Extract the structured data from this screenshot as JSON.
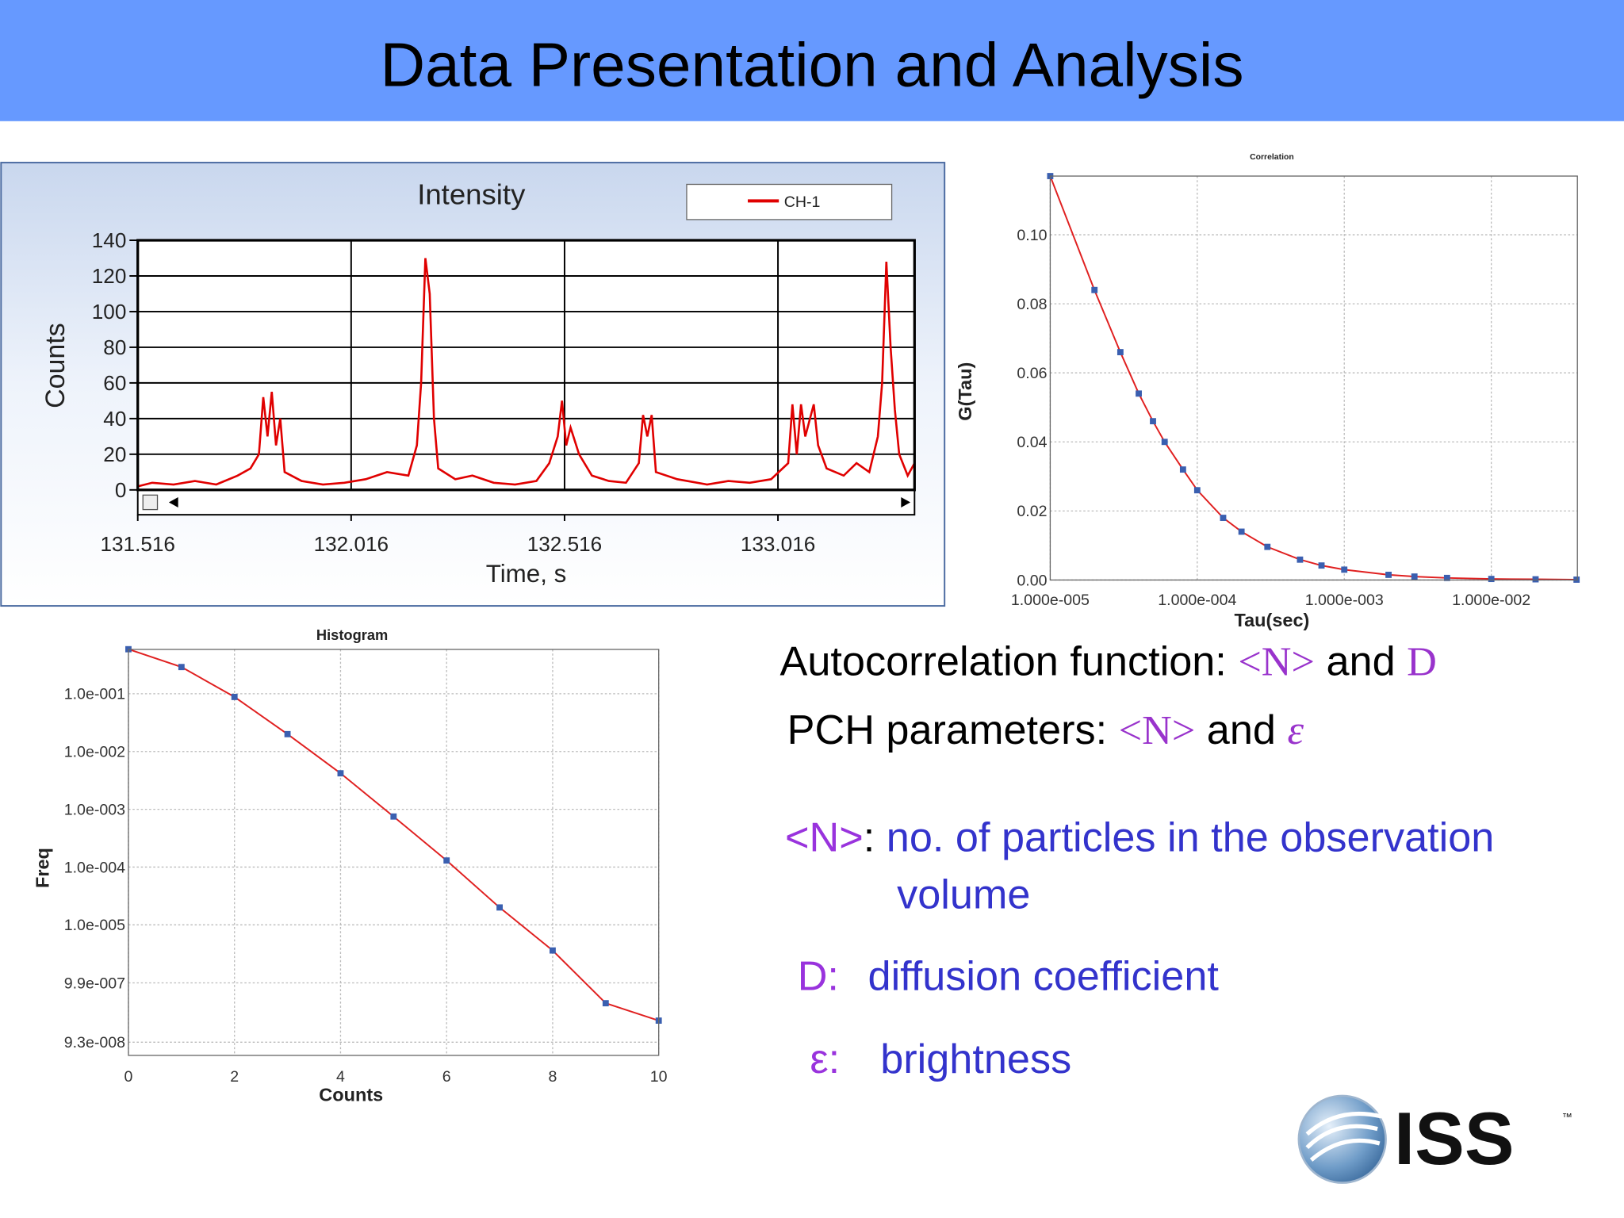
{
  "slide": {
    "title": "Data Presentation and Analysis",
    "lines": [
      [
        "Autocorrelation function: ",
        "<N>",
        " and ",
        "D"
      ],
      [
        "PCH parameters: ",
        "<N>",
        " and ",
        "ε"
      ],
      [
        "<N>",
        ": ",
        "no. of particles in the observation"
      ],
      [
        "volume"
      ],
      [
        "D:",
        "diffusion coefficient"
      ],
      [
        "ε:",
        "brightness"
      ]
    ],
    "logo": [
      "ISS",
      "™"
    ]
  },
  "chart_data": [
    {
      "type": "line",
      "title": "Intensity",
      "x_label": "Time, s",
      "y_label": "Counts",
      "x": [
        131.516,
        131.55,
        131.6,
        131.65,
        131.7,
        131.75,
        131.78,
        131.8,
        131.81,
        131.82,
        131.83,
        131.84,
        131.85,
        131.86,
        131.9,
        131.95,
        132,
        132.05,
        132.1,
        132.15,
        132.17,
        132.18,
        132.19,
        132.2,
        132.21,
        132.22,
        132.26,
        132.3,
        132.35,
        132.4,
        132.45,
        132.48,
        132.5,
        132.51,
        132.52,
        132.53,
        132.55,
        132.58,
        132.62,
        132.66,
        132.69,
        132.7,
        132.71,
        132.72,
        132.73,
        132.78,
        132.85,
        132.9,
        132.95,
        133,
        133.04,
        133.05,
        133.06,
        133.07,
        133.08,
        133.1,
        133.11,
        133.13,
        133.17,
        133.2,
        133.23,
        133.25,
        133.26,
        133.27,
        133.28,
        133.29,
        133.3,
        133.32,
        133.336
      ],
      "series": [
        {
          "name": "CH-1",
          "color": "#e00000",
          "values": [
            2,
            4,
            3,
            5,
            3,
            8,
            12,
            20,
            52,
            30,
            55,
            25,
            40,
            10,
            5,
            3,
            4,
            6,
            10,
            8,
            25,
            60,
            130,
            110,
            40,
            12,
            6,
            8,
            4,
            3,
            5,
            15,
            30,
            50,
            25,
            35,
            20,
            8,
            5,
            4,
            15,
            42,
            30,
            42,
            10,
            6,
            3,
            5,
            4,
            6,
            15,
            48,
            20,
            48,
            30,
            48,
            25,
            12,
            8,
            15,
            10,
            30,
            60,
            128,
            80,
            45,
            20,
            8,
            15
          ]
        }
      ],
      "xlim": [
        131.516,
        133.336
      ],
      "xticks": [
        131.516,
        132.016,
        132.516,
        133.016
      ],
      "ylim": [
        0,
        140
      ],
      "yticks": [
        0,
        20,
        40,
        60,
        80,
        100,
        120,
        140
      ],
      "grid": true,
      "legend": "top-right"
    },
    {
      "type": "scatter",
      "title": "Correlation",
      "x_label": "Tau(sec)",
      "y_label": "G(Tau)",
      "log_x": true,
      "x": [
        1e-05,
        2e-05,
        3e-05,
        4e-05,
        5e-05,
        6e-05,
        8e-05,
        0.0001,
        0.00015,
        0.0002,
        0.0003,
        0.0005,
        0.0007,
        0.001,
        0.002,
        0.003,
        0.005,
        0.01,
        0.02,
        0.038
      ],
      "series": [
        {
          "color": "#3a5fb0",
          "values": [
            0.117,
            0.084,
            0.066,
            0.054,
            0.046,
            0.04,
            0.032,
            0.026,
            0.018,
            0.014,
            0.0096,
            0.0059,
            0.0042,
            0.003,
            0.0015,
            0.001,
            0.0006,
            0.0003,
            0.0002,
            0.0001
          ]
        }
      ],
      "fit_color": "#e02020",
      "xlim": [
        1e-05,
        0.0385
      ],
      "xticks": [
        {
          "value": 1e-05,
          "label": "1.000e-005"
        },
        {
          "value": 0.0001,
          "label": "1.000e-004"
        },
        {
          "value": 0.001,
          "label": "1.000e-003"
        },
        {
          "value": 0.01,
          "label": "1.000e-002"
        }
      ],
      "ylim": [
        0,
        0.117
      ],
      "yticks": [
        {
          "value": 0,
          "label": "0.00"
        },
        {
          "value": 0.02,
          "label": "0.02"
        },
        {
          "value": 0.04,
          "label": "0.04"
        },
        {
          "value": 0.06,
          "label": "0.06"
        },
        {
          "value": 0.08,
          "label": "0.08"
        },
        {
          "value": 0.1,
          "label": "0.10"
        }
      ],
      "grid": true
    },
    {
      "type": "scatter",
      "title": "Histogram",
      "x_label": "Counts",
      "y_label": "Freq",
      "log_y": true,
      "x": [
        0,
        1,
        2,
        3,
        4,
        5,
        6,
        7,
        8,
        9,
        10
      ],
      "series": [
        {
          "color": "#3a5fb0",
          "values": [
            0.59,
            0.29,
            0.088,
            0.02,
            0.0042,
            0.00075,
            0.00013,
            2e-05,
            3.6e-06,
            4.4e-07,
            2.2e-07
          ]
        }
      ],
      "fit_color": "#e02020",
      "xlim": [
        0,
        10
      ],
      "xticks": [
        0,
        2,
        4,
        6,
        8,
        10
      ],
      "ylim": [
        5.5e-08,
        0.586
      ],
      "yticks": [
        {
          "value": 0.1,
          "label": "1.0e-001"
        },
        {
          "value": 0.01,
          "label": "1.0e-002"
        },
        {
          "value": 0.001,
          "label": "1.0e-003"
        },
        {
          "value": 0.0001,
          "label": "1.0e-004"
        },
        {
          "value": 1e-05,
          "label": "1.0e-005"
        },
        {
          "value": 9.9e-07,
          "label": "9.9e-007"
        },
        {
          "value": 9.3e-08,
          "label": "9.3e-008"
        }
      ],
      "grid": true
    }
  ]
}
